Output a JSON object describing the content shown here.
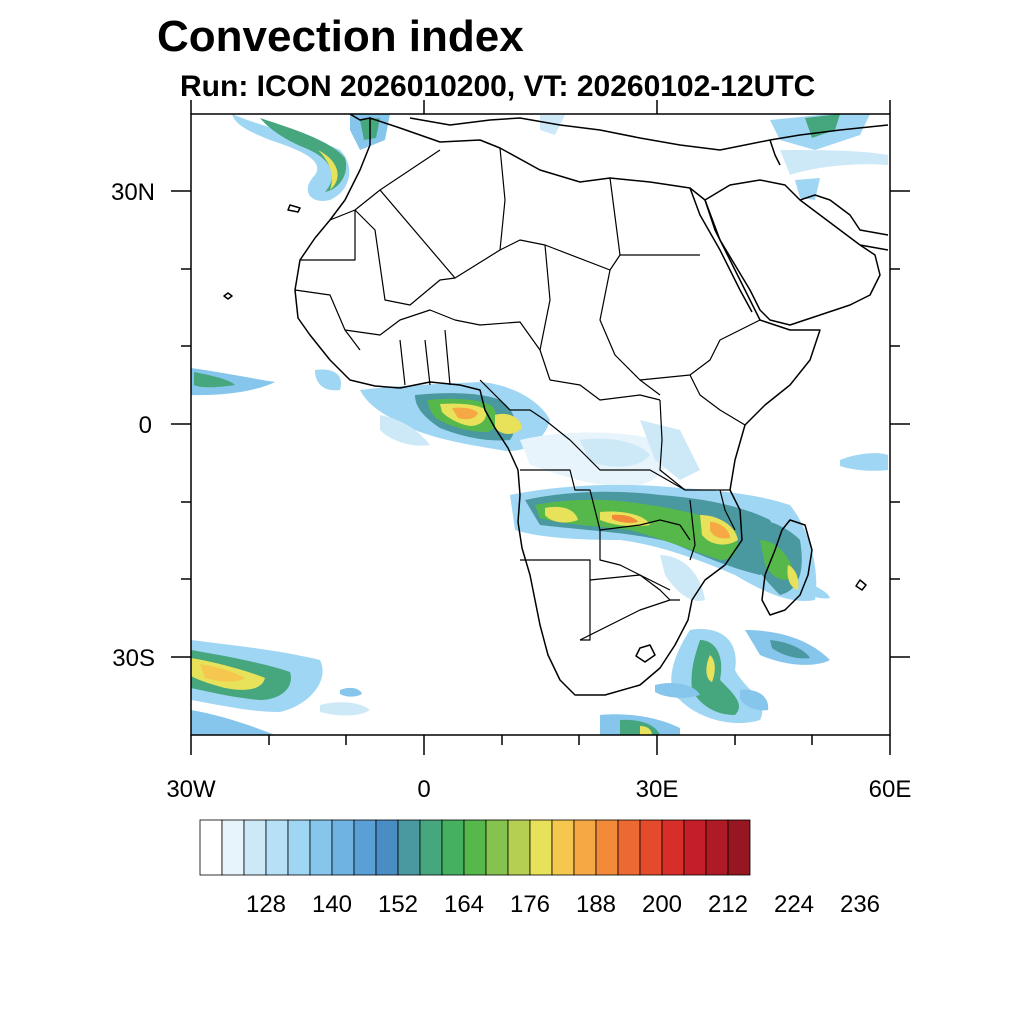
{
  "title": "Convection index",
  "subtitle": "Run: ICON 2026010200,  VT: 20260102-12UTC",
  "map": {
    "lon_range": [
      -30,
      60
    ],
    "lat_range": [
      -40,
      40
    ],
    "lon_ticks": [
      {
        "value": -30,
        "label": "30W"
      },
      {
        "value": 0,
        "label": "0"
      },
      {
        "value": 30,
        "label": "30E"
      },
      {
        "value": 60,
        "label": "60E"
      }
    ],
    "lat_ticks": [
      {
        "value": 30,
        "label": "30N"
      },
      {
        "value": 0,
        "label": "0"
      },
      {
        "value": -30,
        "label": "30S"
      }
    ]
  },
  "colorbar": {
    "labels": [
      "128",
      "140",
      "152",
      "164",
      "176",
      "188",
      "200",
      "212",
      "224",
      "236"
    ],
    "colors": [
      "#ffffff",
      "#e8f4fb",
      "#cde9f8",
      "#b6e0f6",
      "#9fd6f3",
      "#86c6ec",
      "#6fb3e2",
      "#5a9fd6",
      "#4a8cc4",
      "#4a98a0",
      "#46a67e",
      "#44b060",
      "#56b84a",
      "#86c24e",
      "#b5cf52",
      "#e8e25a",
      "#f6c74e",
      "#f6a844",
      "#f28a3a",
      "#ec6a32",
      "#e44a2c",
      "#d82e2a",
      "#c41e28",
      "#ae1a26",
      "#961722"
    ]
  }
}
